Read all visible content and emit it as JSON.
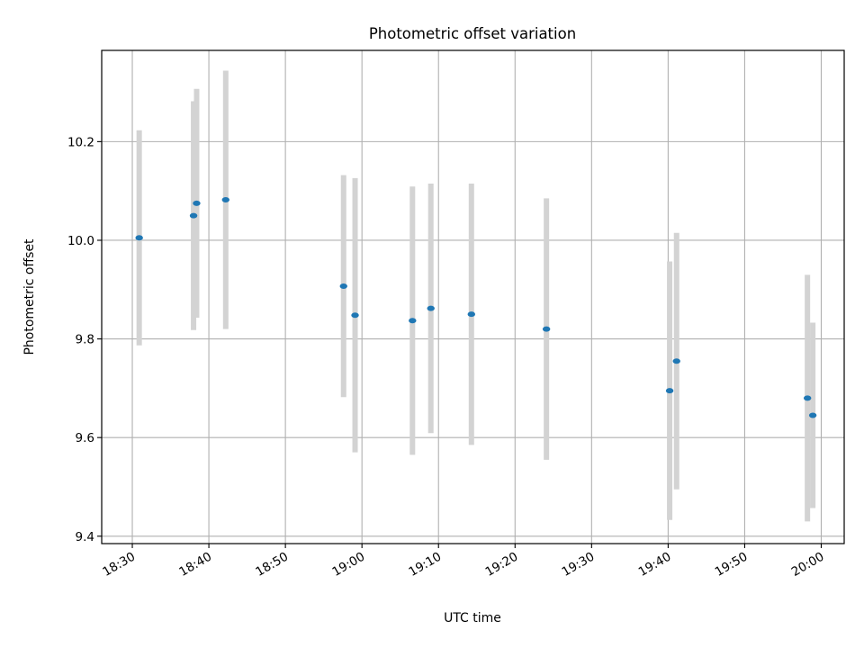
{
  "chart_data": {
    "type": "scatter",
    "title": "Photometric offset variation",
    "xlabel": "UTC time",
    "ylabel": "Photometric offset",
    "x_ticks": [
      "18:30",
      "18:40",
      "18:50",
      "19:00",
      "19:10",
      "19:20",
      "19:30",
      "19:40",
      "19:50",
      "20:00"
    ],
    "y_ticks": [
      "9.4",
      "9.6",
      "9.8",
      "10.0",
      "10.2"
    ],
    "xlim": [
      "18:26",
      "20:03"
    ],
    "ylim": [
      9.385,
      10.385
    ],
    "grid": true,
    "point_color": "#1f77b4",
    "errorbar_color": "#d3d3d3",
    "points": [
      {
        "x": "18:30.9",
        "y": 10.005,
        "err": 0.218
      },
      {
        "x": "18:38.0",
        "y": 10.05,
        "err": 0.232
      },
      {
        "x": "18:38.4",
        "y": 10.075,
        "err": 0.232
      },
      {
        "x": "18:42.2",
        "y": 10.082,
        "err": 0.262
      },
      {
        "x": "18:57.6",
        "y": 9.907,
        "err": 0.225
      },
      {
        "x": "18:59.1",
        "y": 9.848,
        "err": 0.278
      },
      {
        "x": "19:06.6",
        "y": 9.837,
        "err": 0.272
      },
      {
        "x": "19:09.0",
        "y": 9.862,
        "err": 0.253
      },
      {
        "x": "19:14.3",
        "y": 9.85,
        "err": 0.265
      },
      {
        "x": "19:24.1",
        "y": 9.82,
        "err": 0.265
      },
      {
        "x": "19:40.2",
        "y": 9.695,
        "err": 0.262
      },
      {
        "x": "19:41.1",
        "y": 9.755,
        "err": 0.26
      },
      {
        "x": "19:58.2",
        "y": 9.68,
        "err": 0.25
      },
      {
        "x": "19:58.9",
        "y": 9.645,
        "err": 0.188
      }
    ]
  }
}
